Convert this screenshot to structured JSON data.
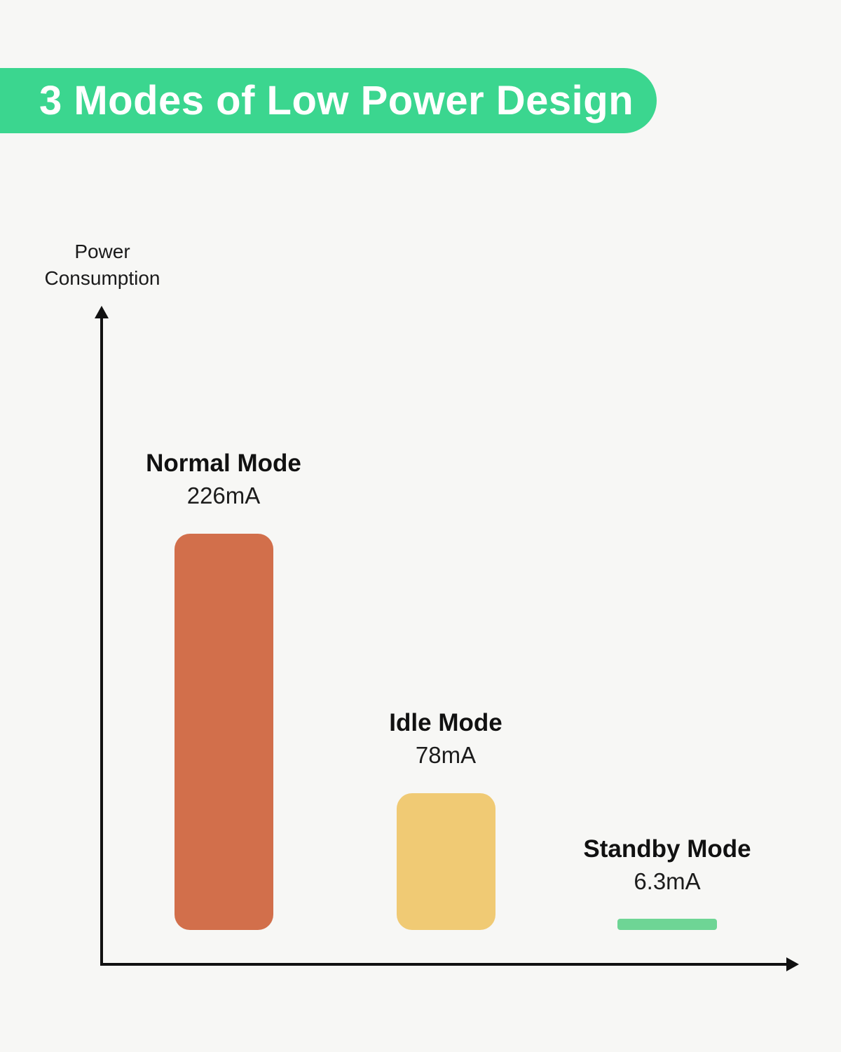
{
  "header": {
    "title": "3 Modes of Low Power Design",
    "banner_color": "#3bd68f",
    "title_color": "#ffffff"
  },
  "chart_data": {
    "type": "bar",
    "title": "3 Modes of Low Power Design",
    "ylabel": "Power Consumption",
    "xlabel": "",
    "unit": "mA",
    "categories": [
      "Normal Mode",
      "Idle Mode",
      "Standby Mode"
    ],
    "values": [
      226,
      78,
      6.3
    ],
    "value_labels": [
      "226mA",
      "78mA",
      "6.3mA"
    ],
    "bar_colors": [
      "#d26f4b",
      "#f0ca74",
      "#6ed595"
    ],
    "axis_color": "#111111",
    "background_color": "#f7f7f5",
    "grid": false,
    "legend": false,
    "ylim": [
      0,
      240
    ]
  }
}
